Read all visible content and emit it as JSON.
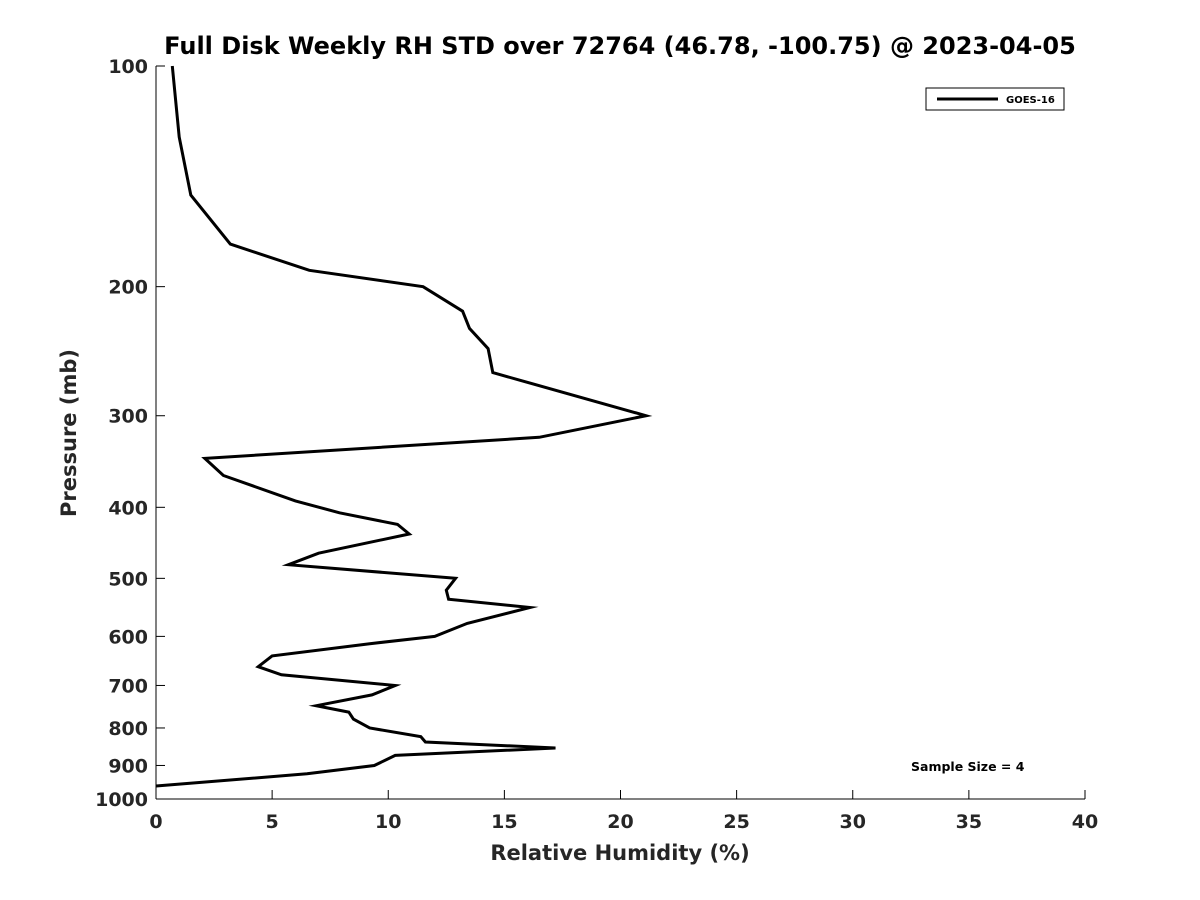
{
  "chart_data": {
    "type": "line",
    "title": "Full Disk Weekly RH STD over 72764 (46.78, -100.75) @ 2023-04-05",
    "xlabel": "Relative Humidity (%)",
    "ylabel": "Pressure (mb)",
    "xlim": [
      0,
      40
    ],
    "ylim": [
      100,
      1000
    ],
    "y_scale": "log",
    "y_reversed": true,
    "x_ticks": [
      "0",
      "5",
      "10",
      "15",
      "20",
      "25",
      "30",
      "35",
      "40"
    ],
    "y_ticks": [
      "100",
      "200",
      "300",
      "400",
      "500",
      "600",
      "700",
      "800",
      "900",
      "1000"
    ],
    "legend": {
      "placement": "top-right",
      "entries": [
        "GOES-16"
      ]
    },
    "annotation": "Sample Size = 4",
    "grid": false,
    "series": [
      {
        "name": "GOES-16",
        "color": "#000000",
        "points": [
          [
            0.7,
            100
          ],
          [
            1.0,
            125
          ],
          [
            1.5,
            150
          ],
          [
            3.2,
            175
          ],
          [
            6.6,
            190
          ],
          [
            11.5,
            200
          ],
          [
            13.2,
            216
          ],
          [
            13.5,
            228
          ],
          [
            14.3,
            243
          ],
          [
            14.5,
            262
          ],
          [
            21.1,
            300
          ],
          [
            16.5,
            321
          ],
          [
            2.1,
            343
          ],
          [
            2.9,
            362
          ],
          [
            6.0,
            392
          ],
          [
            7.9,
            407
          ],
          [
            10.4,
            422
          ],
          [
            10.9,
            435
          ],
          [
            7.0,
            462
          ],
          [
            5.7,
            479
          ],
          [
            12.9,
            500
          ],
          [
            12.5,
            519
          ],
          [
            12.6,
            534
          ],
          [
            16.1,
            548
          ],
          [
            13.4,
            576
          ],
          [
            12.0,
            600
          ],
          [
            9.2,
            614
          ],
          [
            5.0,
            638
          ],
          [
            4.4,
            660
          ],
          [
            5.4,
            677
          ],
          [
            10.3,
            700
          ],
          [
            9.3,
            721
          ],
          [
            6.9,
            746
          ],
          [
            8.3,
            761
          ],
          [
            8.5,
            778
          ],
          [
            9.2,
            800
          ],
          [
            11.4,
            822
          ],
          [
            11.6,
            836
          ],
          [
            17.2,
            852
          ],
          [
            10.3,
            872
          ],
          [
            9.4,
            900
          ],
          [
            6.5,
            924
          ],
          [
            0.0,
            960
          ]
        ]
      }
    ]
  }
}
